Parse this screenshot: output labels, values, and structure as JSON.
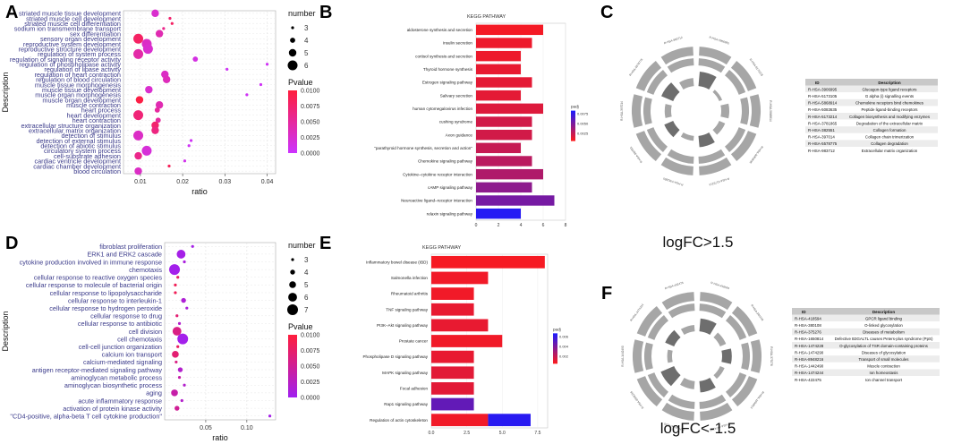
{
  "figure": {
    "panel_letters": [
      "A",
      "B",
      "C",
      "D",
      "E",
      "F"
    ],
    "colors": {
      "pvalue_high": "#ff1e3c",
      "pvalue_low_A": "#cc33ff",
      "pvalue_low_D": "#a020f0",
      "padj_high": "#ff1a1a",
      "padj_low": "#1a1aff",
      "ring_gray": "#a6a6a6",
      "ring_dark": "#6e6e6e",
      "table_header": "#c8c8c8",
      "table_row": "#ececec"
    }
  },
  "chart_data": [
    {
      "panel": "A",
      "type": "scatter",
      "xlabel": "ratio",
      "ylabel": "Description",
      "xlim": [
        0.006,
        0.042
      ],
      "xticks": [
        0.01,
        0.02,
        0.03,
        0.04
      ],
      "xtick_labels": [
        "0.01",
        "0.02",
        "0.03",
        "0.04"
      ],
      "size_legend": {
        "title": "number",
        "values": [
          3,
          4,
          5,
          6
        ]
      },
      "color_legend": {
        "title": "Pvalue",
        "ticks": [
          "0.0100",
          "0.0075",
          "0.0050",
          "0.0025",
          "0.0000"
        ]
      },
      "terms": [
        {
          "label": "striated muscle tissue development",
          "ratio": 0.0135,
          "number": 5,
          "pvalue": 0.0025
        },
        {
          "label": "striated muscle cell development",
          "ratio": 0.017,
          "number": 3,
          "pvalue": 0.0075
        },
        {
          "label": "striated muscle cell differentiation",
          "ratio": 0.0175,
          "number": 3,
          "pvalue": 0.008
        },
        {
          "label": "sodium ion transmembrane transport",
          "ratio": 0.0155,
          "number": 3,
          "pvalue": 0.006
        },
        {
          "label": "sex differentiation",
          "ratio": 0.0145,
          "number": 5,
          "pvalue": 0.004
        },
        {
          "label": "sensory organ development",
          "ratio": 0.0095,
          "number": 6,
          "pvalue": 0.008
        },
        {
          "label": "reproductive system development",
          "ratio": 0.0115,
          "number": 6,
          "pvalue": 0.003
        },
        {
          "label": "reproductive structure development",
          "ratio": 0.0118,
          "number": 6,
          "pvalue": 0.0025
        },
        {
          "label": "regulation of system process",
          "ratio": 0.0095,
          "number": 6,
          "pvalue": 0.0045
        },
        {
          "label": "regulation of signaling receptor activity",
          "ratio": 0.023,
          "number": 4,
          "pvalue": 0.0015
        },
        {
          "label": "regulation of phospholipase activity",
          "ratio": 0.04,
          "number": 3,
          "pvalue": 0.0005
        },
        {
          "label": "regulation of lipase activity",
          "ratio": 0.0305,
          "number": 3,
          "pvalue": 0.0005
        },
        {
          "label": "regulation of heart contraction",
          "ratio": 0.0158,
          "number": 5,
          "pvalue": 0.003
        },
        {
          "label": "regulation of blood circulation",
          "ratio": 0.0162,
          "number": 5,
          "pvalue": 0.0035
        },
        {
          "label": "muscle tissue morphogenesis",
          "ratio": 0.0385,
          "number": 3,
          "pvalue": 0.0005
        },
        {
          "label": "muscle tissue development",
          "ratio": 0.012,
          "number": 5,
          "pvalue": 0.0025
        },
        {
          "label": "muscle organ morphogenesis",
          "ratio": 0.0352,
          "number": 3,
          "pvalue": 0.0005
        },
        {
          "label": "muscle organ development",
          "ratio": 0.0098,
          "number": 5,
          "pvalue": 0.0095
        },
        {
          "label": "muscle contraction",
          "ratio": 0.0145,
          "number": 5,
          "pvalue": 0.004
        },
        {
          "label": "heart process",
          "ratio": 0.014,
          "number": 4,
          "pvalue": 0.005
        },
        {
          "label": "heart development",
          "ratio": 0.0095,
          "number": 6,
          "pvalue": 0.007
        },
        {
          "label": "heart contraction",
          "ratio": 0.0142,
          "number": 4,
          "pvalue": 0.005
        },
        {
          "label": "extracellular structure organization",
          "ratio": 0.0135,
          "number": 5,
          "pvalue": 0.0075
        },
        {
          "label": "extracellular matrix organization",
          "ratio": 0.0135,
          "number": 5,
          "pvalue": 0.0065
        },
        {
          "label": "detection of stimulus",
          "ratio": 0.0095,
          "number": 6,
          "pvalue": 0.003
        },
        {
          "label": "detection of external stimulus",
          "ratio": 0.022,
          "number": 3,
          "pvalue": 0.0005
        },
        {
          "label": "detection of abiotic stimulus",
          "ratio": 0.0215,
          "number": 3,
          "pvalue": 0.0005
        },
        {
          "label": "circulatory system process",
          "ratio": 0.0115,
          "number": 6,
          "pvalue": 0.002
        },
        {
          "label": "cell-substrate adhesion",
          "ratio": 0.0095,
          "number": 5,
          "pvalue": 0.006
        },
        {
          "label": "cardiac ventricle development",
          "ratio": 0.0205,
          "number": 3,
          "pvalue": 0.001
        },
        {
          "label": "cardiac chamber development",
          "ratio": 0.0168,
          "number": 3,
          "pvalue": 0.0085
        },
        {
          "label": "blood circulation",
          "ratio": 0.0095,
          "number": 5,
          "pvalue": 0.003
        }
      ]
    },
    {
      "panel": "B",
      "type": "bar",
      "title": "KEGG PATHWAY",
      "xlim": [
        0,
        8
      ],
      "xticks": [
        0,
        2,
        4,
        6,
        8
      ],
      "color_legend": {
        "title": "padj",
        "ticks": [
          "0.0075",
          "0.0050",
          "0.0025"
        ]
      },
      "bars": [
        {
          "label": "aldosterone synthesis and secretion",
          "value": 6,
          "padj": 0.0005
        },
        {
          "label": "Insulin secretion",
          "value": 5,
          "padj": 0.0008
        },
        {
          "label": "cortisol synthesis and secretion",
          "value": 4,
          "padj": 0.0008
        },
        {
          "label": "Thyroid hormone synthesis",
          "value": 4,
          "padj": 0.001
        },
        {
          "label": "Estrogen signaling pathway",
          "value": 5,
          "padj": 0.0012
        },
        {
          "label": "Salivary secretion",
          "value": 4,
          "padj": 0.0012
        },
        {
          "label": "human cytomegalovirus infection",
          "value": 6,
          "padj": 0.0015
        },
        {
          "label": "cushing syndrome",
          "value": 5,
          "padj": 0.002
        },
        {
          "label": "Axon guidance",
          "value": 5,
          "padj": 0.002
        },
        {
          "label": "\"parathyroid hormone synthesis, secretion and action\"",
          "value": 4,
          "padj": 0.0025
        },
        {
          "label": "Chemokine signaling pathway",
          "value": 5,
          "padj": 0.003
        },
        {
          "label": "Cytokine–cytokine receptor interaction",
          "value": 6,
          "padj": 0.0035
        },
        {
          "label": "cAMP signaling pathway",
          "value": 5,
          "padj": 0.005
        },
        {
          "label": "Neuroactive ligand–receptor interaction",
          "value": 7,
          "padj": 0.006
        },
        {
          "label": "relaxin signaling pathway",
          "value": 4,
          "padj": 0.0095
        }
      ]
    },
    {
      "panel": "D",
      "type": "scatter",
      "xlabel": "ratio",
      "ylabel": "Description",
      "xlim": [
        0.0,
        0.135
      ],
      "xticks": [
        0.05,
        0.1
      ],
      "xtick_labels": [
        "0.05",
        "0.10"
      ],
      "size_legend": {
        "title": "number",
        "values": [
          3,
          4,
          5,
          6,
          7
        ]
      },
      "color_legend": {
        "title": "Pvalue",
        "ticks": [
          "0.0100",
          "0.0075",
          "0.0050",
          "0.0025",
          "0.0000"
        ]
      },
      "terms": [
        {
          "label": "fibroblast proliferation",
          "ratio": 0.034,
          "number": 3,
          "pvalue": 0.0005
        },
        {
          "label": "ERK1 and ERK2 cascade",
          "ratio": 0.02,
          "number": 6,
          "pvalue": 0.0005
        },
        {
          "label": "cytokine production involved in immune response",
          "ratio": 0.024,
          "number": 3,
          "pvalue": 0.001
        },
        {
          "label": "chemotaxis",
          "ratio": 0.012,
          "number": 7,
          "pvalue": 0.0003
        },
        {
          "label": "cellular response to reactive oxygen species",
          "ratio": 0.016,
          "number": 3,
          "pvalue": 0.0075
        },
        {
          "label": "cellular response to molecule of bacterial origin",
          "ratio": 0.013,
          "number": 3,
          "pvalue": 0.0085
        },
        {
          "label": "cellular response to lipopolysaccharide",
          "ratio": 0.013,
          "number": 3,
          "pvalue": 0.0085
        },
        {
          "label": "cellular response to interleukin-1",
          "ratio": 0.023,
          "number": 4,
          "pvalue": 0.0015
        },
        {
          "label": "cellular response to hydrogen peroxide",
          "ratio": 0.027,
          "number": 3,
          "pvalue": 0.0012
        },
        {
          "label": "cellular response to drug",
          "ratio": 0.015,
          "number": 3,
          "pvalue": 0.007
        },
        {
          "label": "cellular response to antibiotic",
          "ratio": 0.018,
          "number": 3,
          "pvalue": 0.002
        },
        {
          "label": "cell division",
          "ratio": 0.015,
          "number": 6,
          "pvalue": 0.006
        },
        {
          "label": "cell chemotaxis",
          "ratio": 0.022,
          "number": 7,
          "pvalue": 0.0003
        },
        {
          "label": "cell-cell junction organization",
          "ratio": 0.016,
          "number": 3,
          "pvalue": 0.008
        },
        {
          "label": "calcium ion transport",
          "ratio": 0.013,
          "number": 5,
          "pvalue": 0.007
        },
        {
          "label": "calcium-mediated signaling",
          "ratio": 0.014,
          "number": 3,
          "pvalue": 0.006
        },
        {
          "label": "antigen receptor-mediated signaling pathway",
          "ratio": 0.019,
          "number": 4,
          "pvalue": 0.002
        },
        {
          "label": "aminoglycan metabolic process",
          "ratio": 0.018,
          "number": 3,
          "pvalue": 0.004
        },
        {
          "label": "aminoglycan biosynthetic process",
          "ratio": 0.024,
          "number": 3,
          "pvalue": 0.002
        },
        {
          "label": "aging",
          "ratio": 0.012,
          "number": 5,
          "pvalue": 0.004
        },
        {
          "label": "acute inflammatory response",
          "ratio": 0.021,
          "number": 3,
          "pvalue": 0.002
        },
        {
          "label": "activation of protein kinase activity",
          "ratio": 0.015,
          "number": 4,
          "pvalue": 0.005
        },
        {
          "label": "\"CD4-positive, alpha-beta T cell cytokine production\"",
          "ratio": 0.128,
          "number": 3,
          "pvalue": 0.0005
        }
      ]
    },
    {
      "panel": "E",
      "type": "bar",
      "title": "KEGG PATHWAY",
      "xlim": [
        0,
        8.2
      ],
      "xticks": [
        0,
        2.5,
        5,
        7.5
      ],
      "xtick_labels": [
        "0.0",
        "2.5",
        "5.0",
        "7.5"
      ],
      "color_legend": {
        "title": "padj",
        "ticks": [
          "0.006",
          "0.004",
          "0.002"
        ]
      },
      "bars": [
        {
          "label": "Inflammatory bowel disease (IBD)",
          "value": 8,
          "padj": 0.0003
        },
        {
          "label": "Salmonella infection",
          "value": 4,
          "padj": 0.0005
        },
        {
          "label": "Rheumatoid arthritis",
          "value": 3,
          "padj": 0.0005
        },
        {
          "label": "TNF signaling pathway",
          "value": 3,
          "padj": 0.0008
        },
        {
          "label": "PI3K–Akt signaling pathway",
          "value": 4,
          "padj": 0.0008
        },
        {
          "label": "Prostate cancer",
          "value": 5,
          "padj": 0.0005
        },
        {
          "label": "Phospholipase D signaling pathway",
          "value": 3,
          "padj": 0.0008
        },
        {
          "label": "MAPK signaling pathway",
          "value": 3,
          "padj": 0.001
        },
        {
          "label": "Focal adhesion",
          "value": 3,
          "padj": 0.001
        },
        {
          "label": "Rap1 signaling pathway",
          "value": 3,
          "padj": 0.0055
        },
        {
          "label": "Regulation of actin cytoskeleton",
          "value": 4,
          "padj": 0.0005,
          "value2": 3,
          "padj2": 0.0075
        }
      ]
    },
    {
      "panel": "C",
      "type": "table",
      "caption": "logFC>1.5",
      "columns": [
        "ID",
        "Description"
      ],
      "rows": [
        [
          "R-HSA-3906995",
          "Glucagon-type ligand receptors"
        ],
        [
          "R-HSA-5173105",
          "G alpha (i) signalling events"
        ],
        [
          "R-HSA-5868914",
          "Chemokine receptors bind chemokines"
        ],
        [
          "R-HSA-5083635",
          "Peptide ligand-binding receptors"
        ],
        [
          "R-HSA-5173214",
          "Collagen biosynthesis and modifying enzymes"
        ],
        [
          "R-HSA-3781865",
          "Degradation of the extracellular matrix"
        ],
        [
          "R-HSA-382551",
          "Collagen formation"
        ],
        [
          "R-HSA-397014",
          "Collagen chain trimerization"
        ],
        [
          "R-HSA-5578775",
          "Collagen degradation"
        ],
        [
          "R-HSA-983712",
          "Extracellular matrix organization"
        ]
      ],
      "circle_labels": [
        "R-HSA-3906995",
        "R-HSA-5173105",
        "R-HSA-5868914",
        "R-HSA-5083635",
        "R-HSA-5173214",
        "R-HSA-3781865",
        "R-HSA-382551",
        "R-HSA-397014",
        "R-HSA-5578775",
        "R-HSA-983712"
      ],
      "inner_levels": [
        0.9,
        0.2,
        0.5,
        0.4,
        0.7,
        0.3,
        0.6,
        0.4,
        0.8,
        0.5
      ]
    },
    {
      "panel": "F",
      "type": "table",
      "caption": "logFC<-1.5",
      "columns": [
        "ID",
        "Description"
      ],
      "rows": [
        [
          "R-HSA-418594",
          "GPCR ligand binding"
        ],
        [
          "R-HSA-380108",
          "O-linked glycosylation"
        ],
        [
          "R-HSA-375276",
          "Diseases of metabolism"
        ],
        [
          "R-HSA-1650814",
          "Defective B3GALTL causes Peters-plus syndrome (PpS)"
        ],
        [
          "R-HSA-1474228",
          "O-glycosylation of TSR domain-containing proteins"
        ],
        [
          "R-HSA-1474290",
          "Diseases of glycosylation"
        ],
        [
          "R-HSA-8948216",
          "Transport of small molecules"
        ],
        [
          "R-HSA-1442490",
          "Muscle contraction"
        ],
        [
          "R-HSA-1474244",
          "Ion homeostasis"
        ],
        [
          "R-HSA-422475",
          "Ion channel transport"
        ]
      ],
      "circle_labels": [
        "R-HSA-418594",
        "R-HSA-380108",
        "R-HSA-375276",
        "R-HSA-1650814",
        "R-HSA-1474228",
        "R-HSA-1474290",
        "R-HSA-8948216",
        "R-HSA-1442490",
        "R-HSA-1474244",
        "R-HSA-422475"
      ],
      "inner_levels": [
        0.8,
        0.4,
        0.6,
        0.3,
        0.7,
        0.5,
        0.9,
        0.3,
        0.6,
        0.4
      ]
    }
  ]
}
